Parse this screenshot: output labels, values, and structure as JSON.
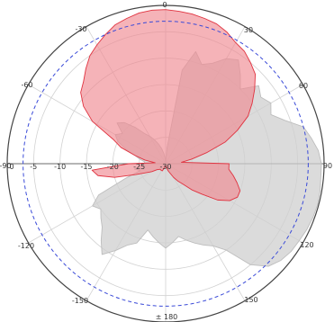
{
  "chart_data": {
    "type": "polar-area",
    "title": "",
    "angle_ticks": [
      "0",
      "30",
      "60",
      "90",
      "120",
      "150",
      "± 180",
      "-150",
      "-120",
      "-90",
      "-60",
      "-30"
    ],
    "radial_ticks": [
      "0",
      "-5",
      "-10",
      "-15",
      "-20",
      "-25",
      "-30"
    ],
    "radial_range_db": [
      -30,
      0
    ],
    "ring_step_db": 5,
    "spoke_step_deg": 30,
    "grid": true,
    "reference_circle_db": -3,
    "reference_circle_color": "#3b4bd8",
    "series": [
      {
        "color": "#bdbdbd",
        "fill_color": "#cfcfcf",
        "points": [
          [
            0,
            -30
          ],
          [
            5,
            -27
          ],
          [
            10,
            -12
          ],
          [
            15,
            -8
          ],
          [
            20,
            -10
          ],
          [
            25,
            -9
          ],
          [
            30,
            -7
          ],
          [
            35,
            -6
          ],
          [
            40,
            -8
          ],
          [
            45,
            -10
          ],
          [
            50,
            -7
          ],
          [
            55,
            -8
          ],
          [
            60,
            -7
          ],
          [
            65,
            -8
          ],
          [
            70,
            -6
          ],
          [
            75,
            -3
          ],
          [
            80,
            -2
          ],
          [
            85,
            -1
          ],
          [
            90,
            -0.5
          ],
          [
            95,
            -0.5
          ],
          [
            100,
            -0.3
          ],
          [
            105,
            -0.2
          ],
          [
            110,
            -0.3
          ],
          [
            115,
            -0.5
          ],
          [
            120,
            -0.8
          ],
          [
            125,
            -1
          ],
          [
            130,
            -1.5
          ],
          [
            135,
            -2.5
          ],
          [
            140,
            -5
          ],
          [
            145,
            -10
          ],
          [
            150,
            -12
          ],
          [
            155,
            -13
          ],
          [
            160,
            -14
          ],
          [
            165,
            -15
          ],
          [
            170,
            -16
          ],
          [
            175,
            -15
          ],
          [
            180,
            -14
          ],
          [
            185,
            -15
          ],
          [
            190,
            -16
          ],
          [
            195,
            -17
          ],
          [
            200,
            -14
          ],
          [
            205,
            -13
          ],
          [
            210,
            -11
          ],
          [
            215,
            -9
          ],
          [
            220,
            -11
          ],
          [
            225,
            -13
          ],
          [
            230,
            -14
          ],
          [
            235,
            -15
          ],
          [
            240,
            -14
          ],
          [
            245,
            -16
          ],
          [
            250,
            -22
          ],
          [
            255,
            -25
          ],
          [
            260,
            -24
          ],
          [
            265,
            -25
          ],
          [
            270,
            -26
          ],
          [
            275,
            -26
          ],
          [
            280,
            -25
          ],
          [
            285,
            -24
          ],
          [
            290,
            -22
          ],
          [
            295,
            -20
          ],
          [
            300,
            -19
          ],
          [
            305,
            -20
          ],
          [
            310,
            -18
          ],
          [
            315,
            -19
          ],
          [
            320,
            -21
          ],
          [
            325,
            -23
          ],
          [
            330,
            -24
          ],
          [
            335,
            -25
          ],
          [
            340,
            -26
          ],
          [
            345,
            -27
          ],
          [
            350,
            -28
          ],
          [
            355,
            -29
          ]
        ]
      },
      {
        "color": "#e0323f",
        "fill_color": "#f08a92",
        "points": [
          [
            0,
            -0.8
          ],
          [
            5,
            -1
          ],
          [
            10,
            -1.2
          ],
          [
            15,
            -1.5
          ],
          [
            20,
            -1.8
          ],
          [
            25,
            -2.5
          ],
          [
            30,
            -3.5
          ],
          [
            35,
            -4
          ],
          [
            40,
            -5
          ],
          [
            45,
            -6
          ],
          [
            50,
            -8
          ],
          [
            55,
            -10
          ],
          [
            60,
            -12
          ],
          [
            65,
            -15
          ],
          [
            70,
            -18
          ],
          [
            75,
            -22
          ],
          [
            80,
            -25
          ],
          [
            85,
            -27
          ],
          [
            90,
            -18
          ],
          [
            95,
            -18
          ],
          [
            100,
            -17
          ],
          [
            105,
            -16
          ],
          [
            110,
            -15
          ],
          [
            115,
            -15
          ],
          [
            120,
            -16
          ],
          [
            125,
            -18
          ],
          [
            130,
            -21
          ],
          [
            135,
            -23
          ],
          [
            140,
            -25
          ],
          [
            145,
            -26
          ],
          [
            150,
            -27
          ],
          [
            155,
            -28
          ],
          [
            160,
            -28.5
          ],
          [
            165,
            -29
          ],
          [
            170,
            -29.5
          ],
          [
            175,
            -29.5
          ],
          [
            180,
            -29.5
          ],
          [
            185,
            -29.5
          ],
          [
            190,
            -29.5
          ],
          [
            195,
            -29.3
          ],
          [
            200,
            -29
          ],
          [
            205,
            -28.5
          ],
          [
            210,
            -28.5
          ],
          [
            215,
            -28.5
          ],
          [
            220,
            -28.5
          ],
          [
            225,
            -28.5
          ],
          [
            230,
            -28.3
          ],
          [
            235,
            -28
          ],
          [
            240,
            -27
          ],
          [
            245,
            -26
          ],
          [
            250,
            -24
          ],
          [
            255,
            -20
          ],
          [
            260,
            -17
          ],
          [
            265,
            -16
          ],
          [
            270,
            -23
          ],
          [
            275,
            -28
          ],
          [
            280,
            -26
          ],
          [
            285,
            -24
          ],
          [
            290,
            -21
          ],
          [
            295,
            -19
          ],
          [
            300,
            -14
          ],
          [
            305,
            -11
          ],
          [
            310,
            -9
          ],
          [
            315,
            -8
          ],
          [
            320,
            -6.5
          ],
          [
            325,
            -5
          ],
          [
            330,
            -4
          ],
          [
            335,
            -3
          ],
          [
            340,
            -2
          ],
          [
            345,
            -1.5
          ],
          [
            350,
            -1
          ],
          [
            355,
            -0.8
          ]
        ]
      }
    ]
  }
}
